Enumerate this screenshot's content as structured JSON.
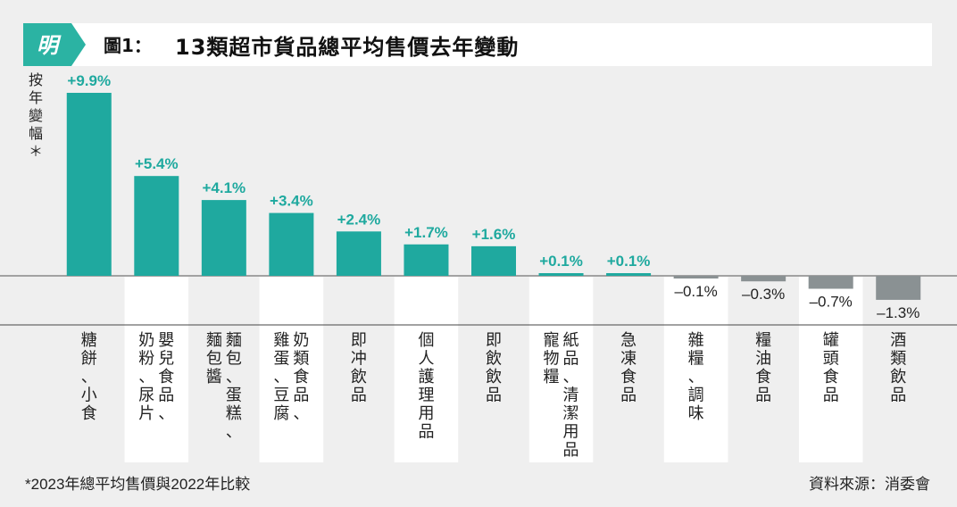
{
  "title": {
    "prefix": "圖1：",
    "text": "13類超市貨品總平均售價去年變動"
  },
  "logo": {
    "text": "明"
  },
  "ylabel": "按年變幅＊",
  "footnote": "*2023年總平均售價與2022年比較",
  "source": "資料來源：消委會",
  "colors": {
    "positive": "#1fa99f",
    "negative": "#8a9193",
    "accent_logo": "#2bb3a3"
  },
  "chart_data": {
    "type": "bar",
    "categories": [
      "糖餅、小食",
      "嬰兒食品、奶粉、尿片",
      "麵包、蛋糕、麵包醬",
      "奶類食品、雞蛋、豆腐",
      "即冲飲品",
      "個人護理用品",
      "即飲飲品",
      "紙品、清潔用品、寵物糧",
      "急凍食品",
      "雜糧、調味",
      "糧油食品",
      "罐頭食品",
      "酒類飲品"
    ],
    "columns": [
      [
        "糖餅、小食"
      ],
      [
        "嬰兒食品、",
        "奶粉、尿片"
      ],
      [
        "麵包、蛋糕、",
        "麵包醬"
      ],
      [
        "奶類食品、",
        "雞蛋、豆腐"
      ],
      [
        "即冲飲品"
      ],
      [
        "個人護理用品"
      ],
      [
        "即飲飲品"
      ],
      [
        "紙品、清潔用品、",
        "寵物糧"
      ],
      [
        "急凍食品"
      ],
      [
        "雜糧、調味"
      ],
      [
        "糧油食品"
      ],
      [
        "罐頭食品"
      ],
      [
        "酒類飲品"
      ]
    ],
    "values": [
      9.9,
      5.4,
      4.1,
      3.4,
      2.4,
      1.7,
      1.6,
      0.1,
      0.1,
      -0.1,
      -0.3,
      -0.7,
      -1.3
    ],
    "labels": [
      "+9.9%",
      "+5.4%",
      "+4.1%",
      "+3.4%",
      "+2.4%",
      "+1.7%",
      "+1.6%",
      "+0.1%",
      "+0.1%",
      "–0.1%",
      "–0.3%",
      "–0.7%",
      "–1.3%"
    ],
    "ylabel": "按年變幅＊",
    "unit": "%"
  }
}
